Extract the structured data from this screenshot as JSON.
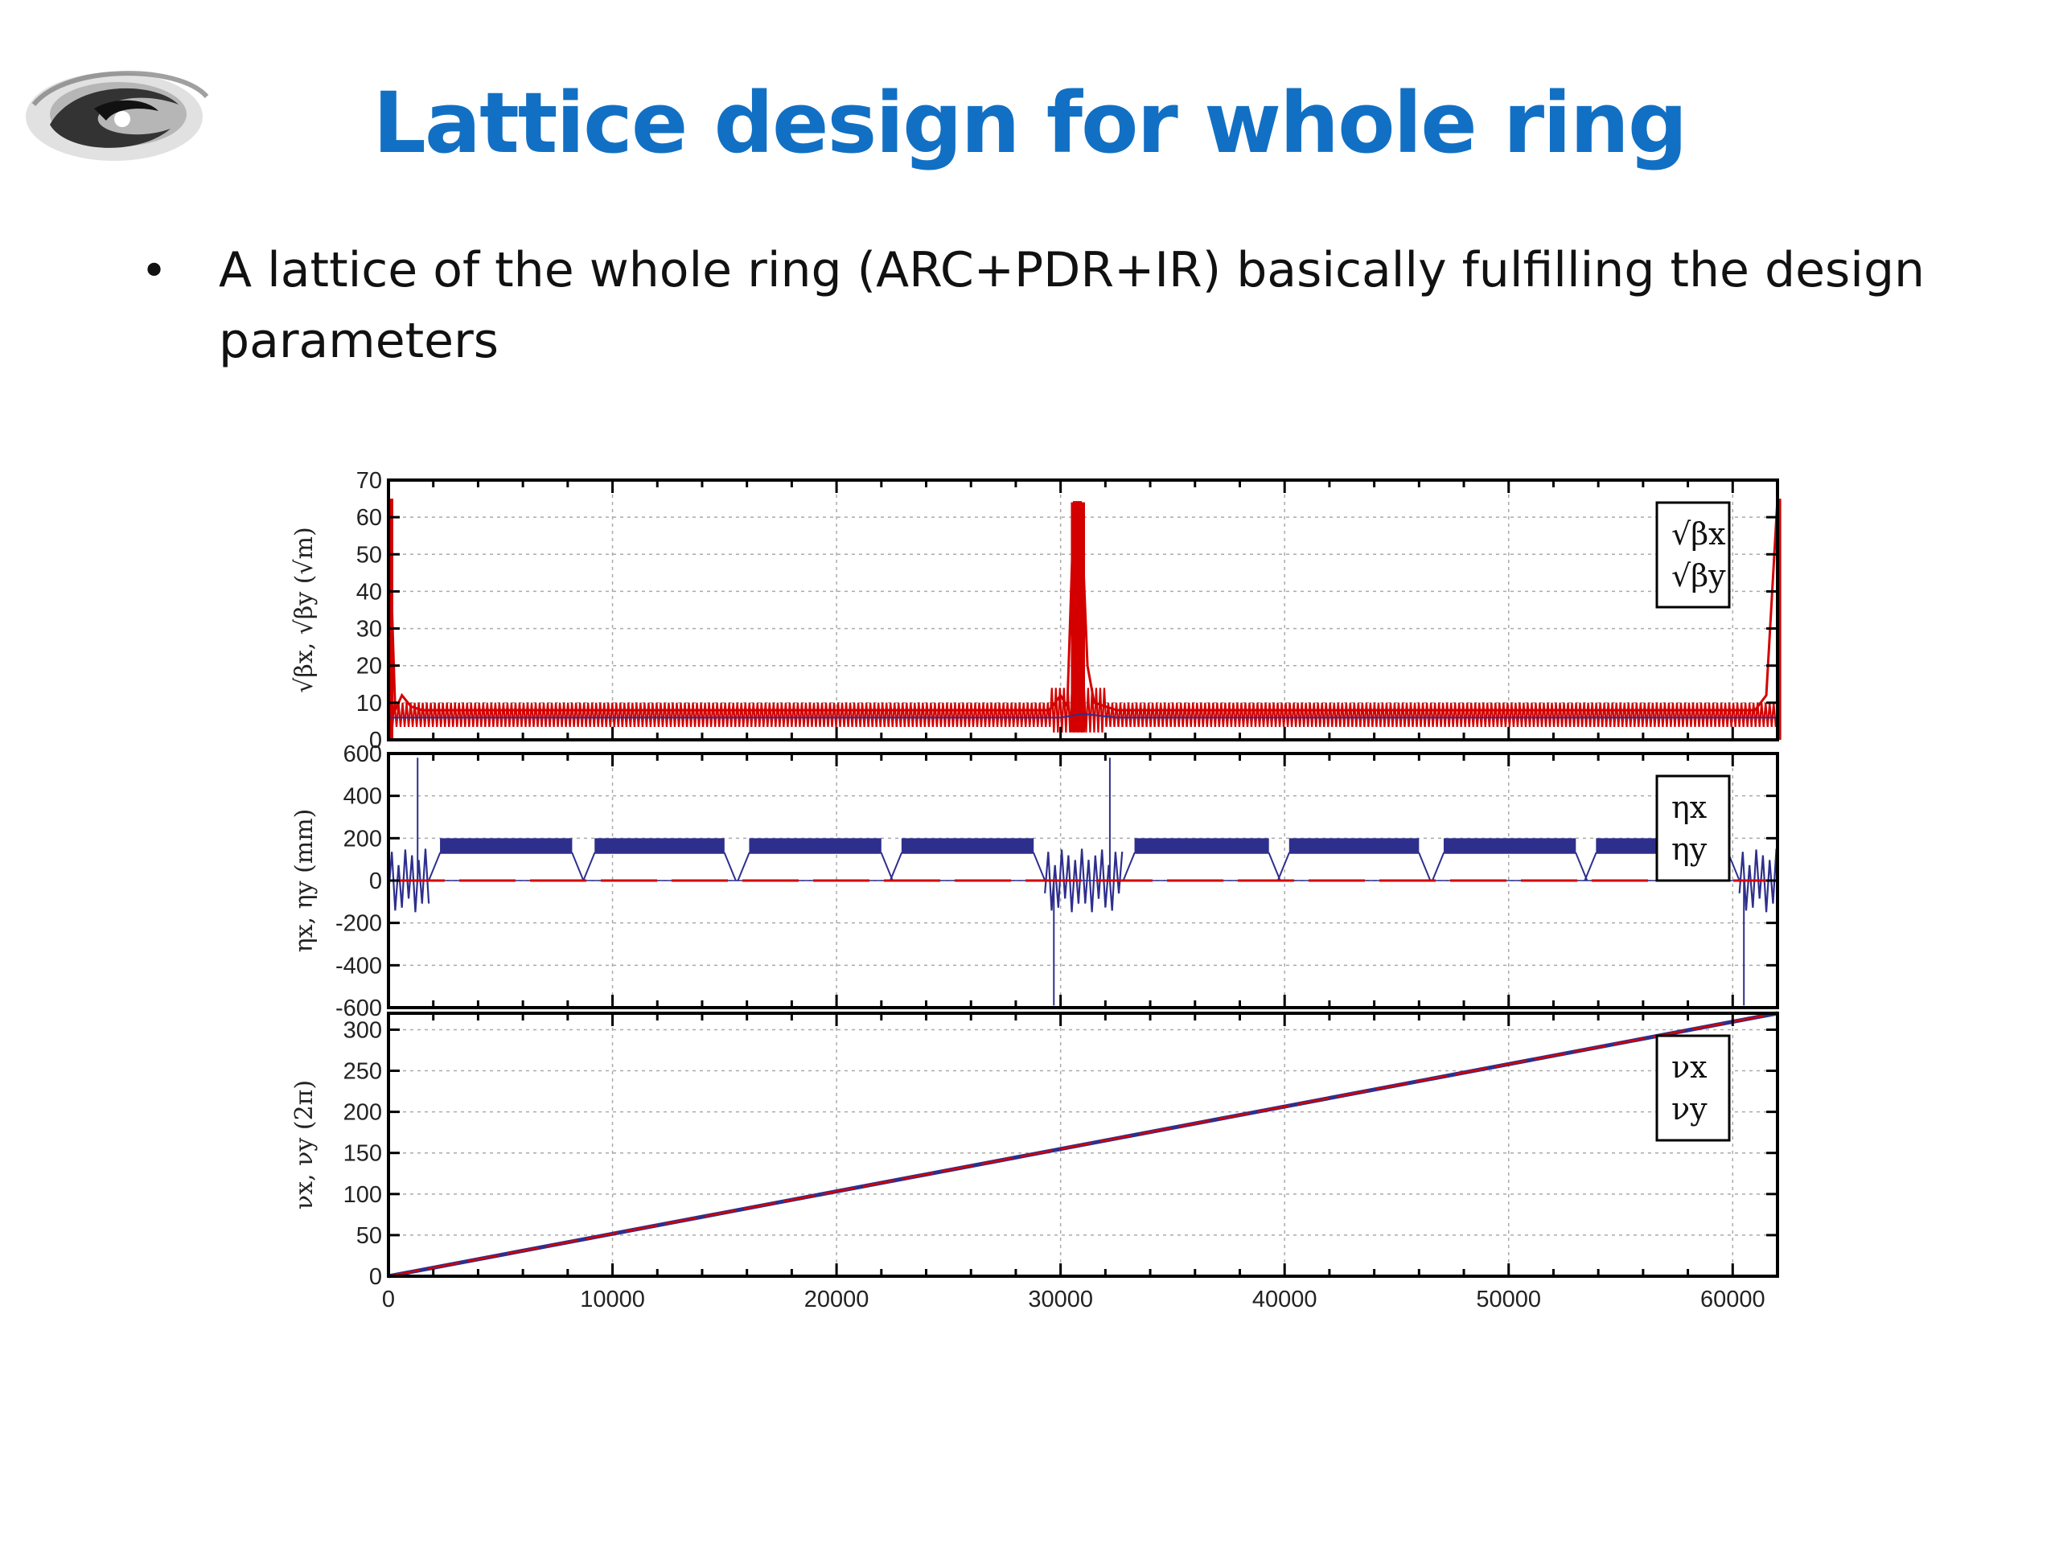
{
  "slide": {
    "title": "Lattice design for whole ring",
    "bullet": "A lattice of the whole ring (ARC+PDR+IR) basically fulfilling the design parameters"
  },
  "colors": {
    "title": "#1170C4",
    "series_x": "#D40000",
    "series_y": "#2E2F8C"
  },
  "chart_data": [
    {
      "type": "line",
      "panel": "beta",
      "ylabel": "√βx, √βy (√m)",
      "xlim": [
        0,
        62000
      ],
      "ylim": [
        0,
        70
      ],
      "yticks": [
        0,
        10,
        20,
        30,
        40,
        50,
        60,
        70
      ],
      "grid": true,
      "legend_position": "top-right",
      "series": [
        {
          "name": "√βx",
          "color": "#D40000",
          "x": [
            0,
            300,
            600,
            1000,
            1500,
            29500,
            30000,
            30300,
            30600,
            30900,
            31200,
            31500,
            32500,
            61000,
            61500,
            62000
          ],
          "y": [
            65,
            8,
            12,
            9,
            8,
            8,
            12,
            9,
            64,
            64,
            20,
            10,
            8,
            8,
            12,
            65
          ]
        },
        {
          "name": "√βy",
          "color": "#2E2F8C",
          "x": [
            0,
            1500,
            30000,
            31000,
            32500,
            62000
          ],
          "y": [
            6,
            6,
            6,
            7,
            6,
            6
          ]
        }
      ]
    },
    {
      "type": "line",
      "panel": "dispersion",
      "ylabel": "ηx, ηy (mm)",
      "xlim": [
        0,
        62000
      ],
      "ylim": [
        -600,
        600
      ],
      "yticks": [
        600,
        400,
        200,
        0,
        -200,
        -400,
        -600
      ],
      "grid": true,
      "legend_position": "top-right",
      "series": [
        {
          "name": "ηx",
          "color": "#2E2F8C",
          "segments": [
            [
              2300,
              8200
            ],
            [
              9200,
              15000
            ],
            [
              16100,
              22000
            ],
            [
              22900,
              28800
            ],
            [
              33300,
              39300
            ],
            [
              40200,
              46000
            ],
            [
              47100,
              53000
            ],
            [
              53900,
              59800
            ]
          ],
          "segment_value": [
            130,
            200
          ],
          "spikes": [
            {
              "x": 1300,
              "y": 580
            },
            {
              "x": 29700,
              "y": -590
            },
            {
              "x": 32200,
              "y": 580
            },
            {
              "x": 60500,
              "y": -590
            }
          ]
        },
        {
          "name": "ηy",
          "color": "#D40000",
          "value": 0
        }
      ]
    },
    {
      "type": "line",
      "panel": "tune",
      "ylabel": "νx, νy (2π)",
      "xlabel": "",
      "xlim": [
        0,
        62000
      ],
      "ylim": [
        0,
        320
      ],
      "yticks": [
        0,
        50,
        100,
        150,
        200,
        250,
        300
      ],
      "xticks": [
        0,
        10000,
        20000,
        30000,
        40000,
        50000,
        60000
      ],
      "grid": true,
      "legend_position": "top-right",
      "series": [
        {
          "name": "νx",
          "color": "#2E2F8C",
          "x": [
            0,
            62000
          ],
          "y": [
            0,
            320
          ]
        },
        {
          "name": "νy",
          "color": "#D40000",
          "x": [
            0,
            62000
          ],
          "y": [
            0,
            320
          ]
        }
      ]
    }
  ]
}
